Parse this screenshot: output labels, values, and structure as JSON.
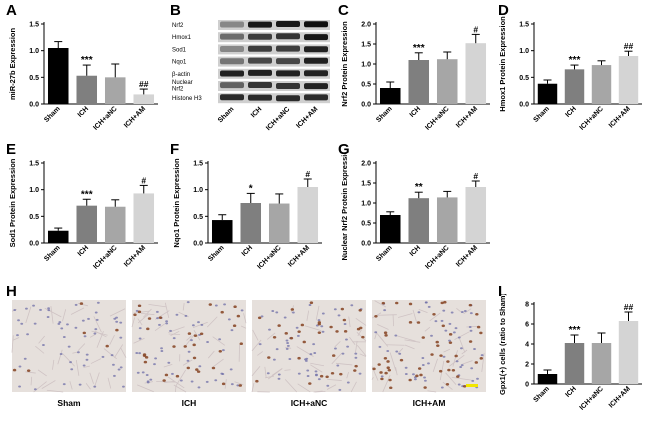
{
  "panel_letters": [
    "A",
    "B",
    "C",
    "D",
    "E",
    "F",
    "G",
    "H",
    "I"
  ],
  "colors": {
    "Sham": "#000000",
    "ICH": "#7f7f7f",
    "ICH+aNC": "#a6a6a6",
    "ICH+AM": "#d4d4d4"
  },
  "chart_data": [
    {
      "id": "A",
      "type": "bar",
      "categories": [
        "Sham",
        "ICH",
        "ICH+aNC",
        "ICH+AM"
      ],
      "values": [
        1.05,
        0.53,
        0.5,
        0.18
      ],
      "errors": [
        0.12,
        0.2,
        0.25,
        0.1
      ],
      "annotations": [
        "",
        "***",
        "",
        "##"
      ],
      "ylabel": "miR-27b Expression",
      "ylim": [
        0,
        1.5
      ],
      "yticks": [
        "0.0",
        "0.5",
        "1.0",
        "1.5"
      ]
    },
    {
      "id": "C",
      "type": "bar",
      "categories": [
        "Sham",
        "ICH",
        "ICH+aNC",
        "ICH+AM"
      ],
      "values": [
        0.4,
        1.1,
        1.12,
        1.52
      ],
      "errors": [
        0.15,
        0.18,
        0.18,
        0.22
      ],
      "annotations": [
        "",
        "***",
        "",
        "#"
      ],
      "ylabel": "Nrf2 Protein Expression",
      "ylim": [
        0,
        2.0
      ],
      "yticks": [
        "0.0",
        "0.5",
        "1.0",
        "1.5",
        "2.0"
      ]
    },
    {
      "id": "D",
      "type": "bar",
      "categories": [
        "Sham",
        "ICH",
        "ICH+aNC",
        "ICH+AM"
      ],
      "values": [
        0.38,
        0.65,
        0.73,
        0.9
      ],
      "errors": [
        0.07,
        0.08,
        0.08,
        0.09
      ],
      "annotations": [
        "",
        "***",
        "",
        "##"
      ],
      "ylabel": "Hmox1 Protein Expression",
      "ylim": [
        0,
        1.5
      ],
      "yticks": [
        "0.0",
        "0.5",
        "1.0",
        "1.5"
      ]
    },
    {
      "id": "E",
      "type": "bar",
      "categories": [
        "Sham",
        "ICH",
        "ICH+aNC",
        "ICH+AM"
      ],
      "values": [
        0.23,
        0.7,
        0.68,
        0.93
      ],
      "errors": [
        0.05,
        0.12,
        0.13,
        0.15
      ],
      "annotations": [
        "",
        "***",
        "",
        "#"
      ],
      "ylabel": "Sod1 Protein Expression",
      "ylim": [
        0,
        1.5
      ],
      "yticks": [
        "0.0",
        "0.5",
        "1.0",
        "1.5"
      ]
    },
    {
      "id": "F",
      "type": "bar",
      "categories": [
        "Sham",
        "ICH",
        "ICH+aNC",
        "ICH+AM"
      ],
      "values": [
        0.43,
        0.75,
        0.74,
        1.05
      ],
      "errors": [
        0.1,
        0.18,
        0.18,
        0.15
      ],
      "annotations": [
        "",
        "*",
        "",
        "#"
      ],
      "ylabel": "Nqo1 Protein Expression",
      "ylim": [
        0,
        1.5
      ],
      "yticks": [
        "0.0",
        "0.5",
        "1.0",
        "1.5"
      ]
    },
    {
      "id": "G",
      "type": "bar",
      "categories": [
        "Sham",
        "ICH",
        "ICH+aNC",
        "ICH+AM"
      ],
      "values": [
        0.7,
        1.12,
        1.14,
        1.4
      ],
      "errors": [
        0.08,
        0.15,
        0.15,
        0.15
      ],
      "annotations": [
        "",
        "**",
        "",
        "#"
      ],
      "ylabel": "Nuclear Nrf2 Protein Expression",
      "ylim": [
        0,
        2.0
      ],
      "yticks": [
        "0.0",
        "0.5",
        "1.0",
        "1.5",
        "2.0"
      ]
    },
    {
      "id": "I",
      "type": "bar",
      "categories": [
        "Sham",
        "ICH",
        "ICH+aNC",
        "ICH+AM"
      ],
      "values": [
        1.0,
        4.1,
        4.1,
        6.3
      ],
      "errors": [
        0.4,
        0.8,
        1.0,
        0.9
      ],
      "annotations": [
        "",
        "***",
        "",
        "##"
      ],
      "ylabel": "Gpx1(+) cells (ratio to Sham)",
      "ylim": [
        0,
        8
      ],
      "yticks": [
        "0",
        "2",
        "4",
        "6",
        "8"
      ]
    }
  ],
  "blot": {
    "proteins": [
      "Nrf2",
      "Hmox1",
      "Sod1",
      "Nqo1",
      "β-actin",
      "Nuclear\nNrf2",
      "Histone H3"
    ],
    "groups": [
      "Sham",
      "ICH",
      "ICH+aNC",
      "ICH+AM"
    ],
    "band_intensity": [
      [
        0.35,
        0.95,
        0.95,
        1.0
      ],
      [
        0.5,
        0.75,
        0.8,
        0.95
      ],
      [
        0.35,
        0.75,
        0.75,
        0.9
      ],
      [
        0.45,
        0.7,
        0.7,
        0.9
      ],
      [
        0.9,
        0.9,
        0.9,
        0.9
      ],
      [
        0.55,
        0.8,
        0.8,
        0.9
      ],
      [
        0.85,
        0.85,
        0.85,
        0.85
      ]
    ]
  },
  "micrographs": {
    "labels": [
      "Sham",
      "ICH",
      "ICH+aNC",
      "ICH+AM"
    ],
    "positive_cell_levels": [
      0.1,
      0.55,
      0.55,
      0.85
    ]
  }
}
